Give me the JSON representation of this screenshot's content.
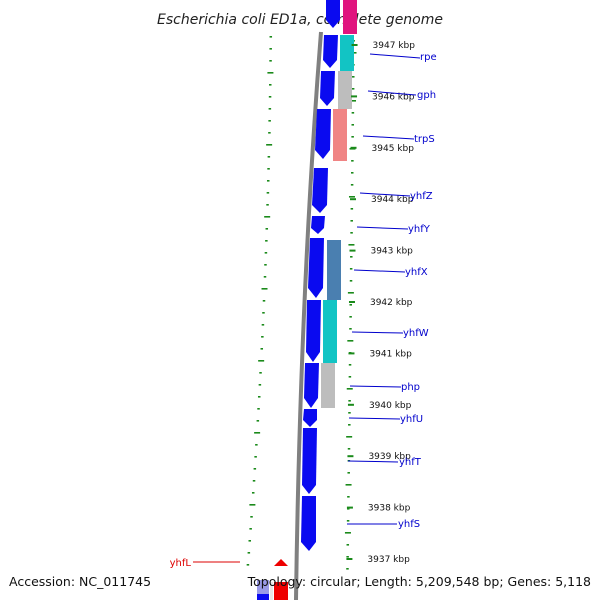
{
  "title": "Escherichia coli ED1a, complete genome",
  "footer": {
    "accession": "Accession: NC_011745",
    "summary": "Topology: circular; Length: 5,209,548 bp; Genes: 5,118"
  },
  "kbp_labels": [
    {
      "text": "3947 kbp",
      "kb": 3947
    },
    {
      "text": "3946 kbp",
      "kb": 3946
    },
    {
      "text": "3945 kbp",
      "kb": 3945
    },
    {
      "text": "3944 kbp",
      "kb": 3944
    },
    {
      "text": "3943 kbp",
      "kb": 3943
    },
    {
      "text": "3942 kbp",
      "kb": 3942
    },
    {
      "text": "3941 kbp",
      "kb": 3941
    },
    {
      "text": "3940 kbp",
      "kb": 3940
    },
    {
      "text": "3939 kbp",
      "kb": 3939
    },
    {
      "text": "3938 kbp",
      "kb": 3938
    },
    {
      "text": "3937 kbp",
      "kb": 3937
    }
  ],
  "gene_labels": [
    {
      "text": "rpe",
      "color": "#0000cc"
    },
    {
      "text": "gph",
      "color": "#0000cc"
    },
    {
      "text": "trpS",
      "color": "#0000cc"
    },
    {
      "text": "yhfZ",
      "color": "#0000cc"
    },
    {
      "text": "yhfY",
      "color": "#0000cc"
    },
    {
      "text": "yhfX",
      "color": "#0000cc"
    },
    {
      "text": "yhfW",
      "color": "#0000cc"
    },
    {
      "text": "php",
      "color": "#0000cc"
    },
    {
      "text": "yhfU",
      "color": "#0000cc"
    },
    {
      "text": "yhfT",
      "color": "#0000cc"
    },
    {
      "text": "yhfS",
      "color": "#0000cc"
    },
    {
      "text": "yhfL",
      "color": "#dd0000"
    }
  ],
  "colors": {
    "cds": "#0a0af0",
    "backbone": "#808080",
    "dots": "#1a8a1a",
    "magenta": "#e0147e",
    "cyan": "#12c4c4",
    "gray": "#bdbdbd",
    "salmon": "#f08484",
    "steel": "#4a7fb0",
    "red": "#ee0000"
  }
}
